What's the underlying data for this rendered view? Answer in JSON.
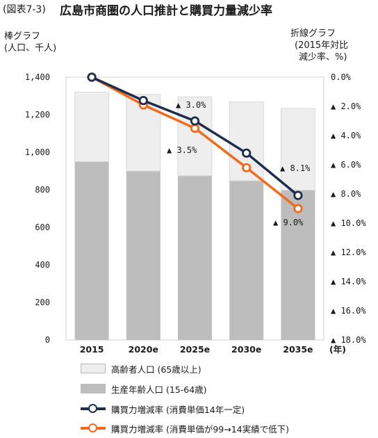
{
  "header": {
    "fig_label": "(図表7-3)",
    "title": "広島市商圏の人口推計と購買力量減少率"
  },
  "units": {
    "left": [
      "棒グラフ",
      "(人口、千人)"
    ],
    "right": [
      "折線グラフ",
      "(2015年対比",
      "減少率、%)"
    ]
  },
  "chart_data": {
    "type": "bar",
    "categories": [
      "2015",
      "2020e",
      "2025e",
      "2030e",
      "2035e"
    ],
    "x_unit_label": "(年)",
    "bar_series": [
      {
        "name": "生産年齢人口(15-64歳)",
        "values": [
          950,
          900,
          875,
          848,
          798
        ],
        "color": "#bdbdbd"
      },
      {
        "name": "高齢者人口(65歳以上)",
        "values": [
          370,
          408,
          420,
          420,
          435
        ],
        "color": "#eeeeee"
      }
    ],
    "left_axis": {
      "ylim": [
        0,
        1400
      ],
      "ticks": [
        "1,400",
        "1,200",
        "1,000",
        "800",
        "600",
        "400",
        "200",
        "0"
      ]
    },
    "right_axis": {
      "ylim": [
        0,
        18
      ],
      "reversed": true,
      "ticks": [
        "0.0%",
        "▲ 2.0%",
        "▲ 4.0%",
        "▲ 6.0%",
        "▲ 8.0%",
        "▲ 10.0%",
        "▲ 12.0%",
        "▲ 14.0%",
        "▲ 16.0%",
        "▲ 18.0%"
      ]
    },
    "line_series": [
      {
        "name": "購買力増減率(消費単価14年一定)",
        "values": [
          0.0,
          1.6,
          3.0,
          5.2,
          8.1
        ],
        "color": "#1f2d4d"
      },
      {
        "name": "購買力増減率(消費単価が99→14実績で低下)",
        "values": [
          0.0,
          1.9,
          3.5,
          6.2,
          9.0
        ],
        "color": "#f26a1b"
      }
    ],
    "annotations": [
      "▲ 3.0%",
      "▲ 3.5%",
      "▲ 8.1%",
      "▲ 9.0%"
    ]
  },
  "legend": [
    {
      "label": "高齢者人口 (65歳以上)",
      "kind": "box",
      "color": "#eeeeee"
    },
    {
      "label": "生産年齢人口 (15-64歳)",
      "kind": "box",
      "color": "#bdbdbd"
    },
    {
      "label": "購買力増減率 (消費単価14年一定)",
      "kind": "line",
      "color": "#1f2d4d"
    },
    {
      "label": "購買力増減率 (消費単価が99→14実績で低下)",
      "kind": "line",
      "color": "#f26a1b"
    }
  ]
}
